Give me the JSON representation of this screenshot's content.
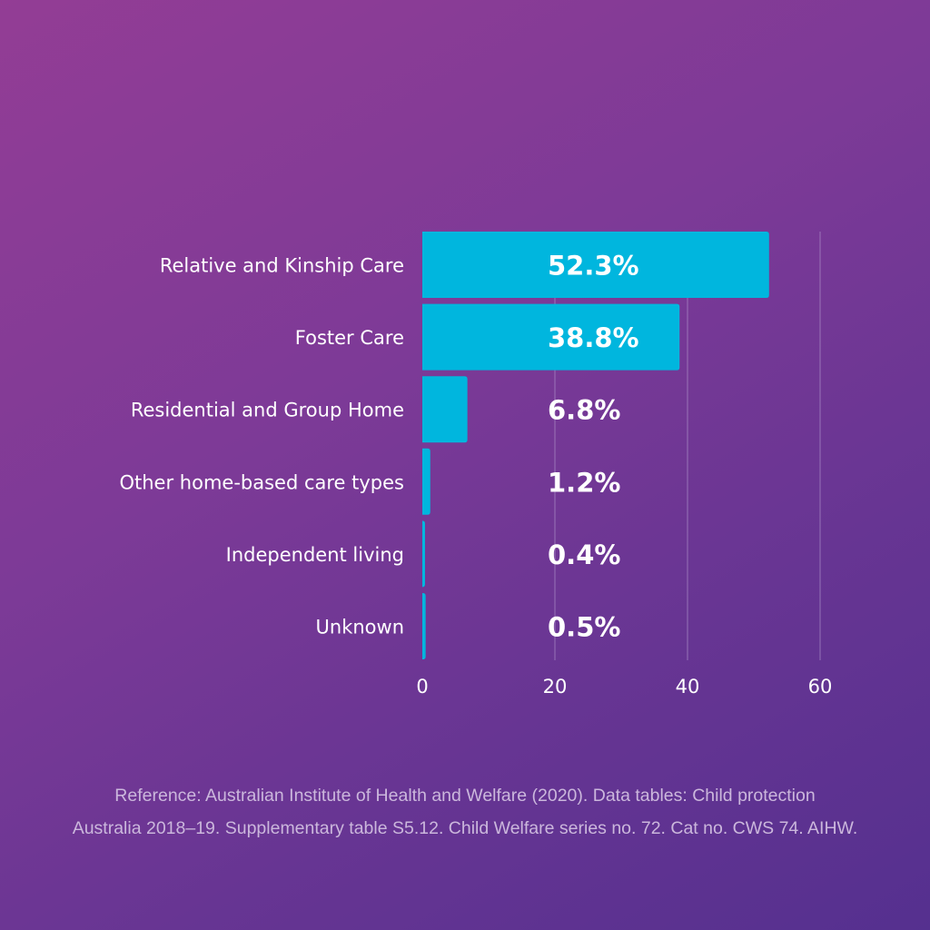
{
  "chart_data": {
    "type": "bar",
    "orientation": "horizontal",
    "categories": [
      "Relative and Kinship Care",
      "Foster Care",
      "Residential and Group Home",
      "Other home-based care types",
      "Independent living",
      "Unknown"
    ],
    "values": [
      52.3,
      38.8,
      6.8,
      1.2,
      0.4,
      0.5
    ],
    "value_labels": [
      "52.3%",
      "38.8%",
      "6.8%",
      "1.2%",
      "0.4%",
      "0.5%"
    ],
    "xticks": [
      "0",
      "20",
      "40",
      "60"
    ],
    "xtick_values": [
      0,
      20,
      40,
      60
    ],
    "xlim": [
      0,
      60
    ],
    "grid": true,
    "bar_color": "#00b6de"
  },
  "reference": {
    "line1": "Reference: Australian Institute of Health and Welfare (2020). Data tables: Child protection",
    "line2": "Australia 2018–19. Supplementary table S5.12. Child Welfare series no. 72. Cat no. CWS 74. AIHW."
  }
}
